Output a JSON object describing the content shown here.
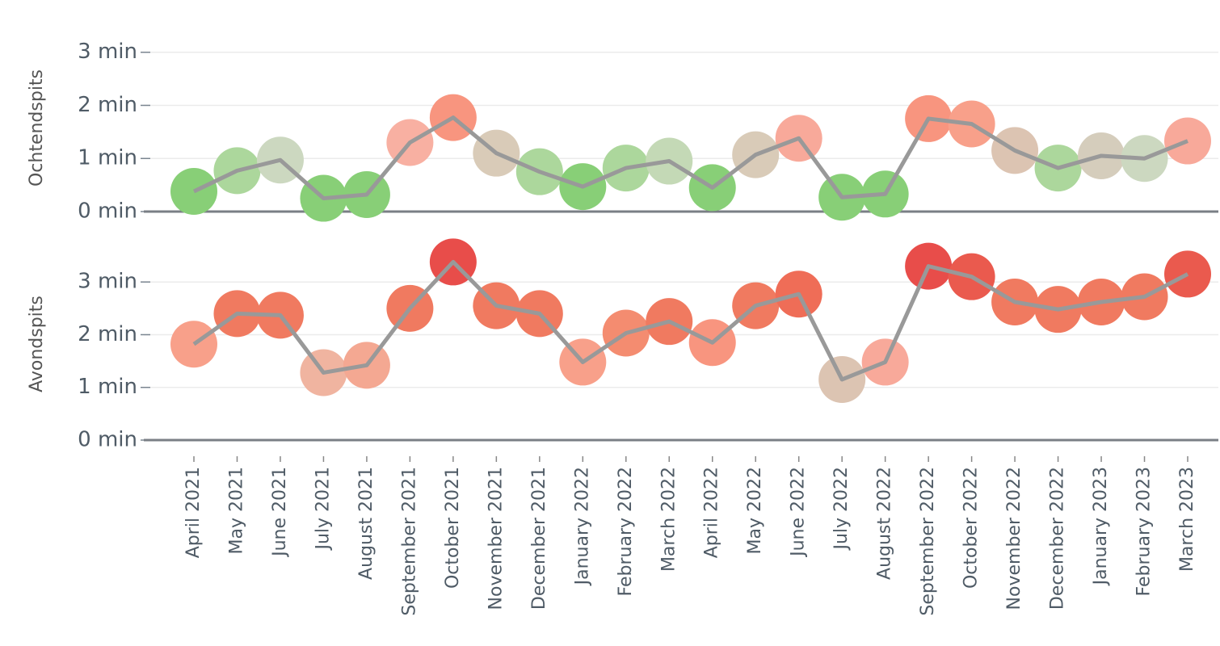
{
  "chart_data": [
    {
      "type": "scatter-line",
      "ylabel": "Ochtendspits",
      "ylim": [
        0,
        3.3
      ],
      "yticks": [
        {
          "value": 0,
          "label": "0 min"
        },
        {
          "value": 1,
          "label": "1 min"
        },
        {
          "value": 2,
          "label": "2 min"
        },
        {
          "value": 3,
          "label": "3 min"
        }
      ],
      "grid": true,
      "line_color": "#999999",
      "values": [
        0.38,
        0.77,
        0.97,
        0.25,
        0.32,
        1.3,
        1.77,
        1.1,
        0.75,
        0.47,
        0.82,
        0.95,
        0.45,
        1.07,
        1.38,
        0.27,
        0.33,
        1.75,
        1.65,
        1.15,
        0.82,
        1.05,
        1.0,
        1.33
      ],
      "colors": [
        "#88cf77",
        "#acd79c",
        "#ccd8c0",
        "#88cf77",
        "#88cf77",
        "#f8b0a2",
        "#f8957f",
        "#d9cbb8",
        "#acd79c",
        "#88cf77",
        "#acd79c",
        "#c4d9b6",
        "#88cf77",
        "#d9cbb8",
        "#f8a99a",
        "#88cf77",
        "#88cf77",
        "#f8957f",
        "#f8a08a",
        "#dcc4b2",
        "#acd79c",
        "#d5cdbc",
        "#ccd8c0",
        "#f8a99a"
      ]
    },
    {
      "type": "scatter-line",
      "ylabel": "Avondspits",
      "ylim": [
        0,
        3.8
      ],
      "yticks": [
        {
          "value": 0,
          "label": "0 min"
        },
        {
          "value": 1,
          "label": "1 min"
        },
        {
          "value": 2,
          "label": "2 min"
        },
        {
          "value": 3,
          "label": "3 min"
        }
      ],
      "grid": true,
      "line_color": "#999999",
      "categories": [
        "April 2021",
        "May 2021",
        "June 2021",
        "July 2021",
        "August 2021",
        "September 2021",
        "October 2021",
        "November 2021",
        "December 2021",
        "January 2022",
        "February 2022",
        "March 2022",
        "April 2022",
        "May 2022",
        "June 2022",
        "July 2022",
        "August 2022",
        "September 2022",
        "October 2022",
        "November 2022",
        "December 2022",
        "January 2023",
        "February 2023",
        "March 2023"
      ],
      "values": [
        1.82,
        2.4,
        2.37,
        1.28,
        1.42,
        2.5,
        3.38,
        2.55,
        2.4,
        1.48,
        2.03,
        2.25,
        1.85,
        2.55,
        2.77,
        1.15,
        1.48,
        3.3,
        3.1,
        2.62,
        2.48,
        2.62,
        2.72,
        3.15
      ],
      "colors": [
        "#f8a08a",
        "#f07a60",
        "#f07a60",
        "#f0b4a0",
        "#f4a892",
        "#f07a60",
        "#e84d4a",
        "#f07a60",
        "#f07a60",
        "#f8a08a",
        "#f48c70",
        "#f07a60",
        "#f8957f",
        "#f07a60",
        "#ef6d57",
        "#dcc4b2",
        "#f8a99a",
        "#e84d4a",
        "#ea5a4e",
        "#f07a60",
        "#f07a60",
        "#f07a60",
        "#f07a60",
        "#ea5a4e"
      ]
    }
  ]
}
